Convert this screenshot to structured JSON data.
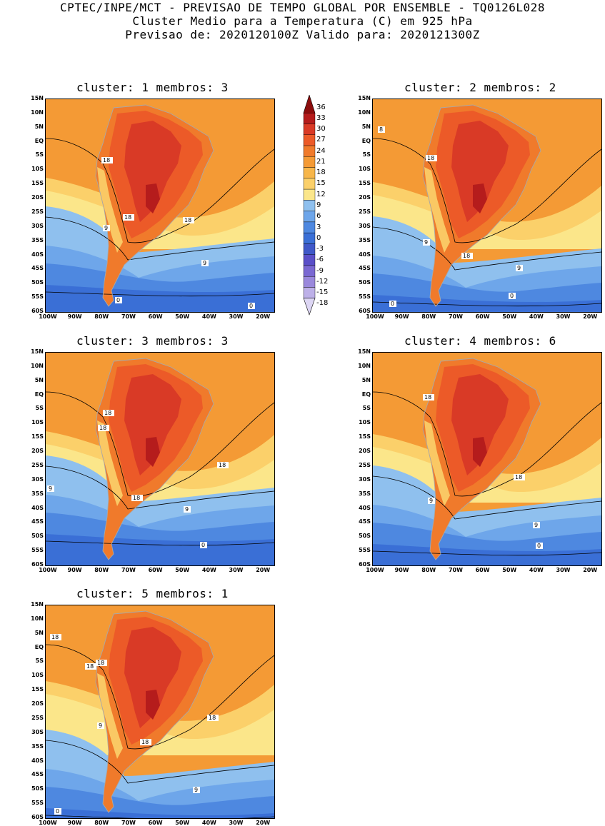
{
  "header": {
    "line1": "CPTEC/INPE/MCT - PREVISAO DE TEMPO GLOBAL POR ENSEMBLE - TQ0126L028",
    "line2": "Cluster Medio para a Temperatura (C) em 925 hPa",
    "line3": "Previsao de: 2020120100Z   Valido para: 2020121300Z"
  },
  "panels": [
    {
      "title": "cluster: 1  membros: 3",
      "contour_labels": [
        "18",
        "18",
        "18",
        "9",
        "9",
        "0",
        "0"
      ]
    },
    {
      "title": "cluster: 2  membros: 2",
      "contour_labels": [
        "8",
        "18",
        "9",
        "18",
        "9",
        "0",
        "0"
      ]
    },
    {
      "title": "cluster: 3  membros: 3",
      "contour_labels": [
        "18",
        "18",
        "18",
        "18",
        "9",
        "9",
        "0"
      ]
    },
    {
      "title": "cluster: 4  membros: 6",
      "contour_labels": [
        "18",
        "18",
        "9",
        "9",
        "0"
      ]
    },
    {
      "title": "cluster: 5  membros: 1",
      "contour_labels": [
        "18",
        "18",
        "18",
        "18",
        "9",
        "18",
        "9",
        "0"
      ]
    }
  ],
  "axes": {
    "lat_labels": [
      "15N",
      "10N",
      "5N",
      "EQ",
      "5S",
      "10S",
      "15S",
      "20S",
      "25S",
      "30S",
      "35S",
      "40S",
      "45S",
      "50S",
      "55S",
      "60S"
    ],
    "lon_labels": [
      "100W",
      "90W",
      "80W",
      "70W",
      "60W",
      "50W",
      "40W",
      "30W",
      "20W"
    ]
  },
  "legend": {
    "levels": [
      "36",
      "33",
      "30",
      "27",
      "24",
      "21",
      "18",
      "15",
      "12",
      "9",
      "6",
      "3",
      "0",
      "-3",
      "-6",
      "-9",
      "-12",
      "-15",
      "-18"
    ],
    "colors": [
      "#8c0d0d",
      "#b51c1c",
      "#d93a26",
      "#ec5a28",
      "#f07a2b",
      "#f49a35",
      "#f7b64a",
      "#fbd06a",
      "#fbe68a",
      "#8fc0ee",
      "#6ea6ea",
      "#4e88e0",
      "#3a6fd6",
      "#3f58c8",
      "#5a4fc8",
      "#7a68d2",
      "#9a88dc",
      "#bdb0e8",
      "#ddd6f4"
    ]
  }
}
